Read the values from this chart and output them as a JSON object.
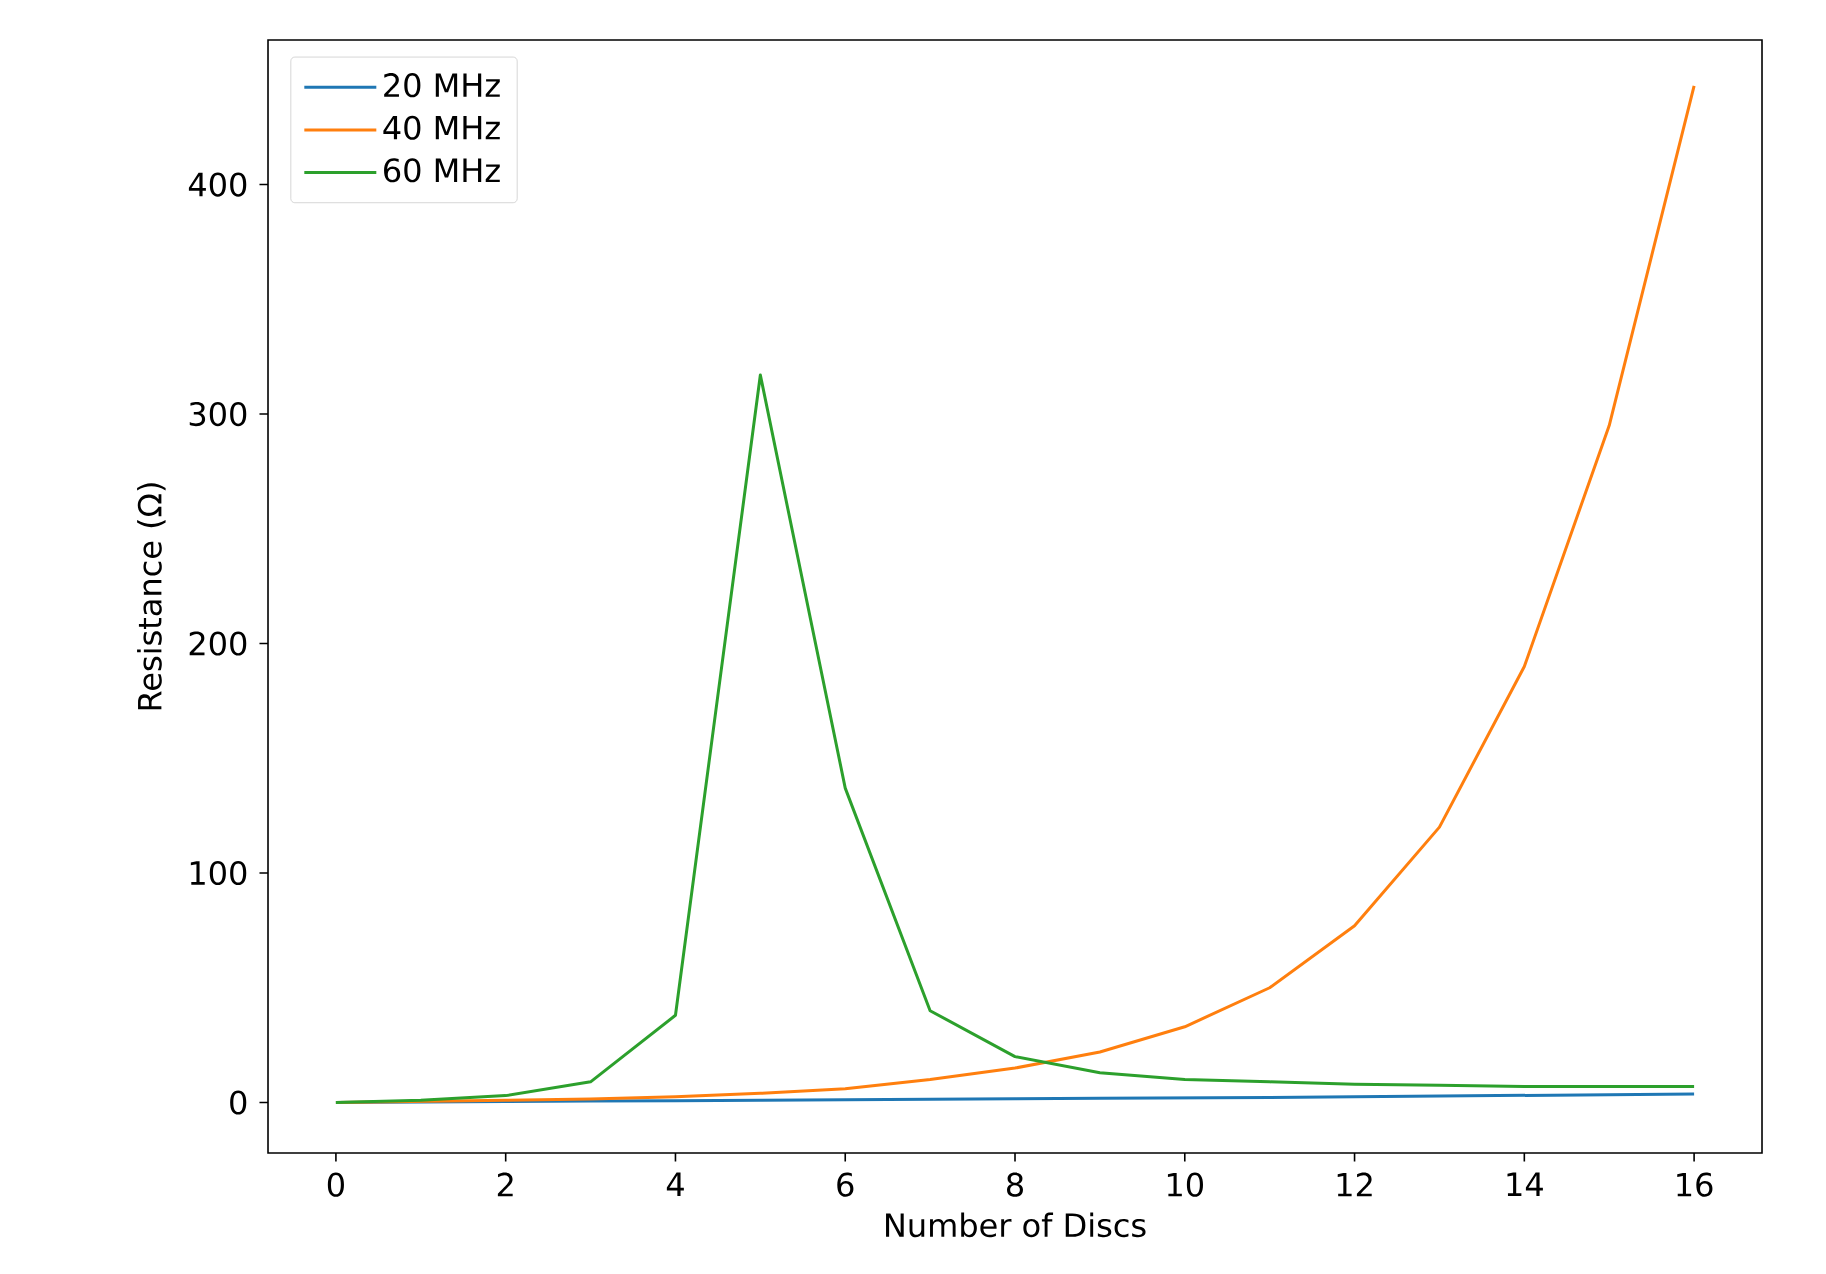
{
  "chart_data": {
    "type": "line",
    "xlabel": "Number of Discs",
    "ylabel": "Resistance (Ω)",
    "x": [
      0,
      1,
      2,
      3,
      4,
      5,
      6,
      7,
      8,
      9,
      10,
      11,
      12,
      13,
      14,
      15,
      16
    ],
    "series": [
      {
        "name": "20 MHz",
        "color": "#1f77b4",
        "values": [
          0,
          0.2,
          0.4,
          0.6,
          0.8,
          1,
          1.2,
          1.4,
          1.6,
          1.8,
          2,
          2.2,
          2.5,
          2.8,
          3.1,
          3.4,
          3.7
        ]
      },
      {
        "name": "40 MHz",
        "color": "#ff7f0e",
        "values": [
          0,
          0.5,
          1,
          1.5,
          2.5,
          4,
          6,
          10,
          15,
          22,
          33,
          50,
          77,
          120,
          190,
          295,
          443
        ]
      },
      {
        "name": "60 MHz",
        "color": "#2ca02c",
        "values": [
          0,
          1,
          3,
          9,
          38,
          317,
          137,
          40,
          20,
          13,
          10,
          9,
          8,
          7.5,
          7,
          7,
          7
        ]
      }
    ],
    "xlim": [
      -0.8,
      16.8
    ],
    "ylim": [
      -22,
      463
    ],
    "xticks": [
      0,
      2,
      4,
      6,
      8,
      10,
      12,
      14,
      16
    ],
    "yticks": [
      0,
      100,
      200,
      300,
      400
    ],
    "grid": false,
    "legend": "top left",
    "marker": "none",
    "line_style": "solid"
  }
}
